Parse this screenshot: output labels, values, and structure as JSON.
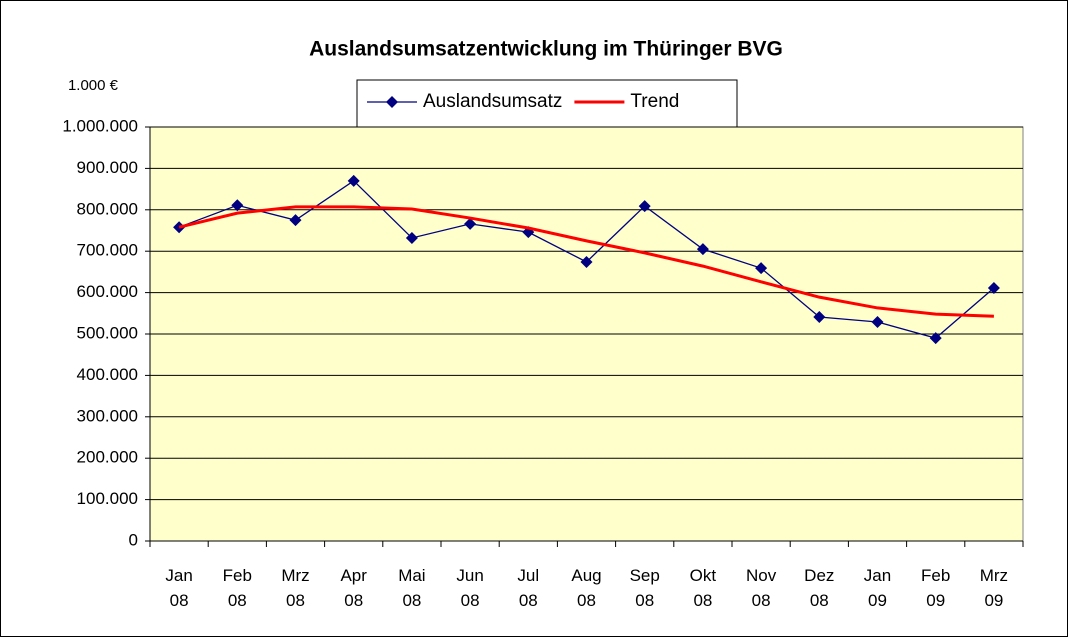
{
  "chart_data": {
    "type": "line",
    "title": "Auslandsumsatzentwicklung im Thüringer BVG",
    "y_unit_label": "1.000 €",
    "categories": [
      "Jan 08",
      "Feb 08",
      "Mrz 08",
      "Apr 08",
      "Mai 08",
      "Jun 08",
      "Jul 08",
      "Aug 08",
      "Sep 08",
      "Okt 08",
      "Nov 08",
      "Dez 08",
      "Jan 09",
      "Feb 09",
      "Mrz 09"
    ],
    "series": [
      {
        "name": "Auslandsumsatz",
        "color": "#000080",
        "marker": "diamond",
        "values": [
          758000,
          811000,
          775000,
          870000,
          732000,
          766000,
          746000,
          674000,
          809000,
          705000,
          659000,
          541000,
          529000,
          490000,
          611000
        ]
      },
      {
        "name": "Trend",
        "color": "#ff0000",
        "values": [
          758000,
          792000,
          807000,
          807000,
          802000,
          780000,
          756000,
          725000,
          696000,
          664000,
          626000,
          589000,
          563000,
          548000,
          543000
        ]
      }
    ],
    "ylim": [
      0,
      1000000
    ],
    "yticks": [
      0,
      {
        "value": 100000,
        "label": "100.000"
      },
      {
        "value": 200000,
        "label": "200.000"
      },
      {
        "value": 300000,
        "label": "300.000"
      },
      {
        "value": 400000,
        "label": "400.000"
      },
      {
        "value": 500000,
        "label": "500.000"
      },
      {
        "value": 600000,
        "label": "600.000"
      },
      {
        "value": 700000,
        "label": "700.000"
      },
      {
        "value": 800000,
        "label": "800.000"
      },
      {
        "value": 900000,
        "label": "900.000"
      },
      {
        "value": 1000000,
        "label": "1.000.000"
      }
    ],
    "grid": true,
    "plot_background": "#ffffcc"
  }
}
